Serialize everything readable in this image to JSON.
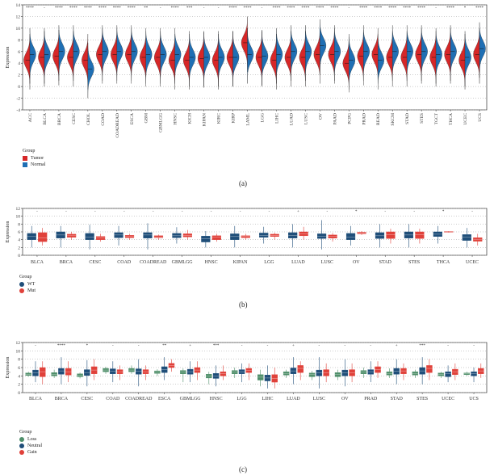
{
  "colors": {
    "tumor": "#d62728",
    "normal": "#1f6fb4",
    "wt": "#1f4e79",
    "mut": "#e0413a",
    "loss": "#4f8f6a",
    "neutral": "#1f4e79",
    "gain": "#e0413a"
  },
  "chart_data": [
    {
      "panel": "(a)",
      "type": "violin",
      "ylabel": "Expression",
      "ylim": [
        -4,
        14
      ],
      "yticks": [
        -4,
        -2,
        0,
        2,
        4,
        6,
        8,
        10,
        12,
        14
      ],
      "grid": true,
      "categories": [
        "ACC",
        "BLCA",
        "BRCA",
        "CESC",
        "CHOL",
        "COAD",
        "COADREAD",
        "ESCA",
        "GBM",
        "GBMLGG",
        "HNSC",
        "KICH",
        "KIPAN",
        "KIRC",
        "KIRP",
        "LAML",
        "LGG",
        "LIHC",
        "LUAD",
        "LUSC",
        "OV",
        "PAAD",
        "PCPG",
        "PRAD",
        "READ",
        "SKCM",
        "STAD",
        "STES",
        "TGCT",
        "THCA",
        "UCEC",
        "UCS"
      ],
      "significance": [
        "****",
        "-",
        "****",
        "****",
        "****",
        "****",
        "****",
        "****",
        "**",
        "-",
        "****",
        "***",
        "-",
        "-",
        "****",
        "****",
        "-",
        "****",
        "****",
        "****",
        "****",
        "****",
        "-",
        "****",
        "****",
        "****",
        "****",
        "****",
        "-",
        "****",
        "*",
        "****"
      ],
      "series": [
        {
          "name": "Tumor",
          "medians": [
            4.5,
            5.0,
            5.2,
            5.0,
            4.5,
            5.5,
            5.5,
            5.5,
            5.0,
            5.0,
            4.5,
            4.5,
            4.8,
            4.5,
            5.0,
            7.5,
            5.0,
            4.5,
            5.0,
            5.0,
            5.5,
            5.5,
            4.0,
            5.2,
            5.5,
            5.0,
            5.0,
            5.5,
            5.0,
            5.5,
            4.5,
            5.5
          ]
        },
        {
          "name": "Normal",
          "medians": [
            5.5,
            5.5,
            6.0,
            6.0,
            3.0,
            6.0,
            6.0,
            6.0,
            5.5,
            5.5,
            5.5,
            5.0,
            5.0,
            5.0,
            5.0,
            5.5,
            5.2,
            5.5,
            6.0,
            6.0,
            7.0,
            6.0,
            4.5,
            6.0,
            4.5,
            6.0,
            6.0,
            6.0,
            5.5,
            6.0,
            5.0,
            6.5
          ]
        }
      ],
      "legend": {
        "title": "Group",
        "entries": [
          "Tumor",
          "Normal"
        ],
        "placement": "bottom-left"
      }
    },
    {
      "panel": "(b)",
      "type": "box",
      "ylabel": "Expression",
      "ylim": [
        0,
        12
      ],
      "yticks": [
        0,
        2,
        4,
        6,
        8,
        10,
        12
      ],
      "grid": true,
      "categories": [
        "BLCA",
        "BRCA",
        "CESC",
        "COAD",
        "COADREAD",
        "GBMLGG",
        "HNSC",
        "KIPAN",
        "LGG",
        "LUAD",
        "LUSC",
        "OV",
        "STAD",
        "STES",
        "THCA",
        "UCEC"
      ],
      "significance": [
        "-",
        "-",
        "-",
        "-",
        "-",
        "-",
        "-",
        "-",
        "-",
        "+",
        "-",
        "*",
        "-",
        "-",
        "*",
        "-"
      ],
      "series": [
        {
          "name": "WT",
          "box": [
            [
              2,
              4.0,
              4.8,
              5.6,
              7.5
            ],
            [
              2,
              4.4,
              5.2,
              6.0,
              7.5
            ],
            [
              1.5,
              4.0,
              4.7,
              5.6,
              7.8
            ],
            [
              2.5,
              4.5,
              5.2,
              5.8,
              7.5
            ],
            [
              1.5,
              4.4,
              5.2,
              5.8,
              8.2
            ],
            [
              3,
              4.5,
              5.0,
              5.6,
              7.2
            ],
            [
              2,
              3.4,
              4.2,
              4.9,
              6.2
            ],
            [
              2,
              4.0,
              4.8,
              5.5,
              7.5
            ],
            [
              3,
              4.6,
              5.1,
              5.7,
              7.3
            ],
            [
              2,
              4.4,
              5.1,
              5.8,
              8.0
            ],
            [
              1.5,
              4.3,
              4.9,
              5.5,
              9.0
            ],
            [
              2.5,
              4.0,
              4.7,
              5.6,
              7.5
            ],
            [
              2,
              4.3,
              5.0,
              5.8,
              8.0
            ],
            [
              2,
              4.4,
              5.2,
              6.0,
              8.0
            ],
            [
              3,
              4.8,
              5.4,
              6.0,
              7.5
            ],
            [
              2,
              3.8,
              4.6,
              5.3,
              7.0
            ]
          ]
        },
        {
          "name": "Mut",
          "box": [
            [
              2.5,
              3.5,
              4.5,
              5.8,
              7.0
            ],
            [
              4,
              4.6,
              5.0,
              5.4,
              6.0
            ],
            [
              3.5,
              4.0,
              4.5,
              4.8,
              5.5
            ],
            [
              4,
              4.5,
              4.8,
              5.1,
              5.5
            ],
            [
              4,
              4.5,
              4.7,
              5.0,
              5.3
            ],
            [
              4,
              4.7,
              5.1,
              5.5,
              6.5
            ],
            [
              3.5,
              4.0,
              4.6,
              5.0,
              5.5
            ],
            [
              4,
              4.5,
              4.8,
              5.0,
              5.5
            ],
            [
              4,
              4.8,
              5.1,
              5.4,
              5.8
            ],
            [
              4,
              5.0,
              5.5,
              6.0,
              7.3
            ],
            [
              3.5,
              4.4,
              4.8,
              5.2,
              5.7
            ],
            [
              5.2,
              5.5,
              5.7,
              5.9,
              6.2
            ],
            [
              3,
              4.3,
              5.3,
              6.0,
              6.8
            ],
            [
              3,
              4.3,
              5.3,
              6.0,
              6.8
            ],
            [
              5.8,
              5.9,
              6.0,
              6.1,
              6.2
            ],
            [
              2.5,
              3.6,
              4.1,
              4.5,
              5.5
            ]
          ]
        }
      ],
      "legend": {
        "title": "Group",
        "entries": [
          "WT",
          "Mut"
        ],
        "placement": "bottom-left"
      }
    },
    {
      "panel": "(c)",
      "type": "box",
      "ylabel": "Expression",
      "ylim": [
        0,
        12
      ],
      "yticks": [
        0,
        2,
        4,
        6,
        8,
        10,
        12
      ],
      "grid": true,
      "categories": [
        "BLCA",
        "BRCA",
        "CESC",
        "COAD",
        "COADREAD",
        "ESCA",
        "GBMLGG",
        "HNSC",
        "LGG",
        "LIHC",
        "LUAD",
        "LUSC",
        "OV",
        "PRAD",
        "STAD",
        "STES",
        "UCEC",
        "UCS"
      ],
      "significance": [
        "-",
        "****",
        "*",
        "-",
        "-",
        "**",
        "+",
        "***",
        "-",
        "-",
        "+",
        "-",
        "-",
        "-",
        "+",
        "***",
        "-",
        "-"
      ],
      "series": [
        {
          "name": "Loss",
          "box": [
            [
              3.8,
              4.1,
              4.4,
              4.7,
              5.0
            ],
            [
              3.5,
              4.0,
              4.4,
              4.8,
              5.5
            ],
            [
              3.4,
              3.8,
              4.1,
              4.5,
              4.8
            ],
            [
              4.5,
              5.0,
              5.4,
              5.8,
              6.2
            ],
            [
              4.5,
              5.0,
              5.4,
              5.8,
              6.5
            ],
            [
              4.0,
              4.6,
              4.9,
              5.2,
              5.6
            ],
            [
              2.5,
              4.5,
              4.9,
              5.3,
              5.8
            ],
            [
              2.0,
              3.5,
              4.0,
              4.4,
              5.0
            ],
            [
              3.5,
              4.5,
              4.9,
              5.3,
              6.0
            ],
            [
              1.5,
              3.0,
              3.7,
              4.3,
              5.5
            ],
            [
              3.5,
              4.2,
              4.6,
              5.0,
              5.5
            ],
            [
              3.0,
              3.8,
              4.3,
              4.7,
              5.2
            ],
            [
              3.0,
              3.8,
              4.4,
              4.8,
              5.5
            ],
            [
              3.5,
              4.5,
              4.9,
              5.3,
              6.0
            ],
            [
              3.5,
              4.2,
              4.6,
              5.0,
              5.8
            ],
            [
              3.5,
              4.2,
              4.6,
              5.0,
              5.5
            ],
            [
              3.5,
              4.0,
              4.4,
              4.7,
              5.0
            ],
            [
              4.0,
              4.3,
              4.5,
              4.7,
              5.0
            ]
          ]
        },
        {
          "name": "Neutral",
          "box": [
            [
              2.5,
              4.0,
              4.7,
              5.4,
              7.5
            ],
            [
              2.0,
              4.4,
              5.2,
              5.8,
              8.5
            ],
            [
              1.5,
              4.1,
              4.8,
              5.5,
              7.8
            ],
            [
              2.5,
              4.5,
              5.1,
              5.7,
              7.5
            ],
            [
              1.5,
              4.4,
              5.1,
              5.7,
              8.0
            ],
            [
              3.0,
              4.8,
              5.5,
              6.2,
              8.5
            ],
            [
              2.5,
              4.4,
              5.0,
              5.6,
              7.5
            ],
            [
              1.5,
              3.4,
              4.0,
              4.6,
              6.5
            ],
            [
              2.5,
              4.5,
              5.0,
              5.5,
              7.0
            ],
            [
              1.0,
              2.8,
              3.5,
              4.2,
              6.5
            ],
            [
              2.0,
              4.5,
              5.2,
              5.9,
              8.5
            ],
            [
              1.0,
              4.0,
              4.7,
              5.4,
              8.5
            ],
            [
              1.5,
              4.0,
              4.7,
              5.4,
              8.0
            ],
            [
              2.5,
              4.4,
              5.0,
              5.5,
              7.5
            ],
            [
              2.0,
              4.4,
              5.1,
              5.8,
              8.0
            ],
            [
              2.0,
              4.4,
              5.2,
              6.0,
              8.5
            ],
            [
              2.5,
              3.8,
              4.5,
              5.0,
              6.5
            ],
            [
              2.5,
              4.0,
              4.5,
              5.0,
              6.0
            ]
          ]
        },
        {
          "name": "Gain",
          "box": [
            [
              2.0,
              3.8,
              5.0,
              6.0,
              7.5
            ],
            [
              2.5,
              4.2,
              5.0,
              5.8,
              7.5
            ],
            [
              3.0,
              4.5,
              5.4,
              6.2,
              8.0
            ],
            [
              3.0,
              4.5,
              5.0,
              5.5,
              6.5
            ],
            [
              3.0,
              4.5,
              5.0,
              5.5,
              6.5
            ],
            [
              5.0,
              6.0,
              6.5,
              7.0,
              8.0
            ],
            [
              3.0,
              4.8,
              5.4,
              6.0,
              7.5
            ],
            [
              3.0,
              4.0,
              4.5,
              5.0,
              6.5
            ],
            [
              3.0,
              4.8,
              5.3,
              5.8,
              7.0
            ],
            [
              1.0,
              2.5,
              3.4,
              4.3,
              6.0
            ],
            [
              3.0,
              4.8,
              5.8,
              6.5,
              7.5
            ],
            [
              2.5,
              4.0,
              4.8,
              5.5,
              7.0
            ],
            [
              2.5,
              4.0,
              4.7,
              5.5,
              7.0
            ],
            [
              3.5,
              4.8,
              5.5,
              6.2,
              7.5
            ],
            [
              3.0,
              4.5,
              5.2,
              5.8,
              7.0
            ],
            [
              3.0,
              4.8,
              5.8,
              6.5,
              8.0
            ],
            [
              3.0,
              4.3,
              5.0,
              5.6,
              7.0
            ],
            [
              3.5,
              4.5,
              5.2,
              5.8,
              7.0
            ]
          ]
        }
      ],
      "legend": {
        "title": "Group",
        "entries": [
          "Loss",
          "Neutral",
          "Gain"
        ],
        "placement": "bottom-left"
      }
    }
  ]
}
